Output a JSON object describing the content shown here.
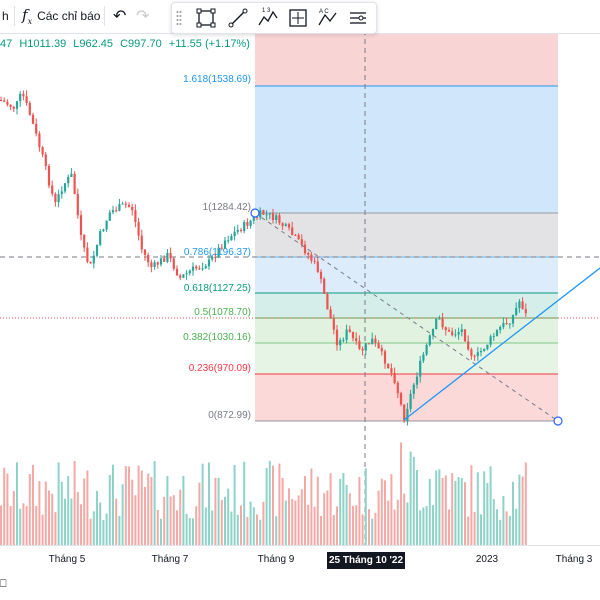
{
  "toolbar": {
    "interval_label": "h",
    "indicators_label": "Các chỉ báo"
  },
  "ohlc": {
    "open": "47",
    "high": "H1011.39",
    "low": "L962.45",
    "close": "C997.70",
    "change": "+11.55 (+1.17%)"
  },
  "fib_levels": [
    {
      "label": "1.618(1538.69)",
      "color": "#2196f3"
    },
    {
      "label": "1(1284.42)",
      "color": "#787b86"
    },
    {
      "label": "0.786(1196.37)",
      "color": "#2196f3"
    },
    {
      "label": "0.618(1127.25)",
      "color": "#089981"
    },
    {
      "label": "0.5(1078.70)",
      "color": "#4caf50"
    },
    {
      "label": "0.382(1030.16)",
      "color": "#4caf50"
    },
    {
      "label": "0.236(970.09)",
      "color": "#f23645"
    },
    {
      "label": "0(872.99)",
      "color": "#787b86"
    }
  ],
  "time_axis": {
    "labels": [
      "Tháng 5",
      "Tháng 7",
      "Tháng 9",
      "2023",
      "Tháng 3"
    ],
    "crosshair": "25 Tháng 10 '22"
  },
  "bottom_glyph": "⎕",
  "colors": {
    "up": "#26a69a",
    "down": "#ef5350",
    "accent": "#2962ff"
  }
}
